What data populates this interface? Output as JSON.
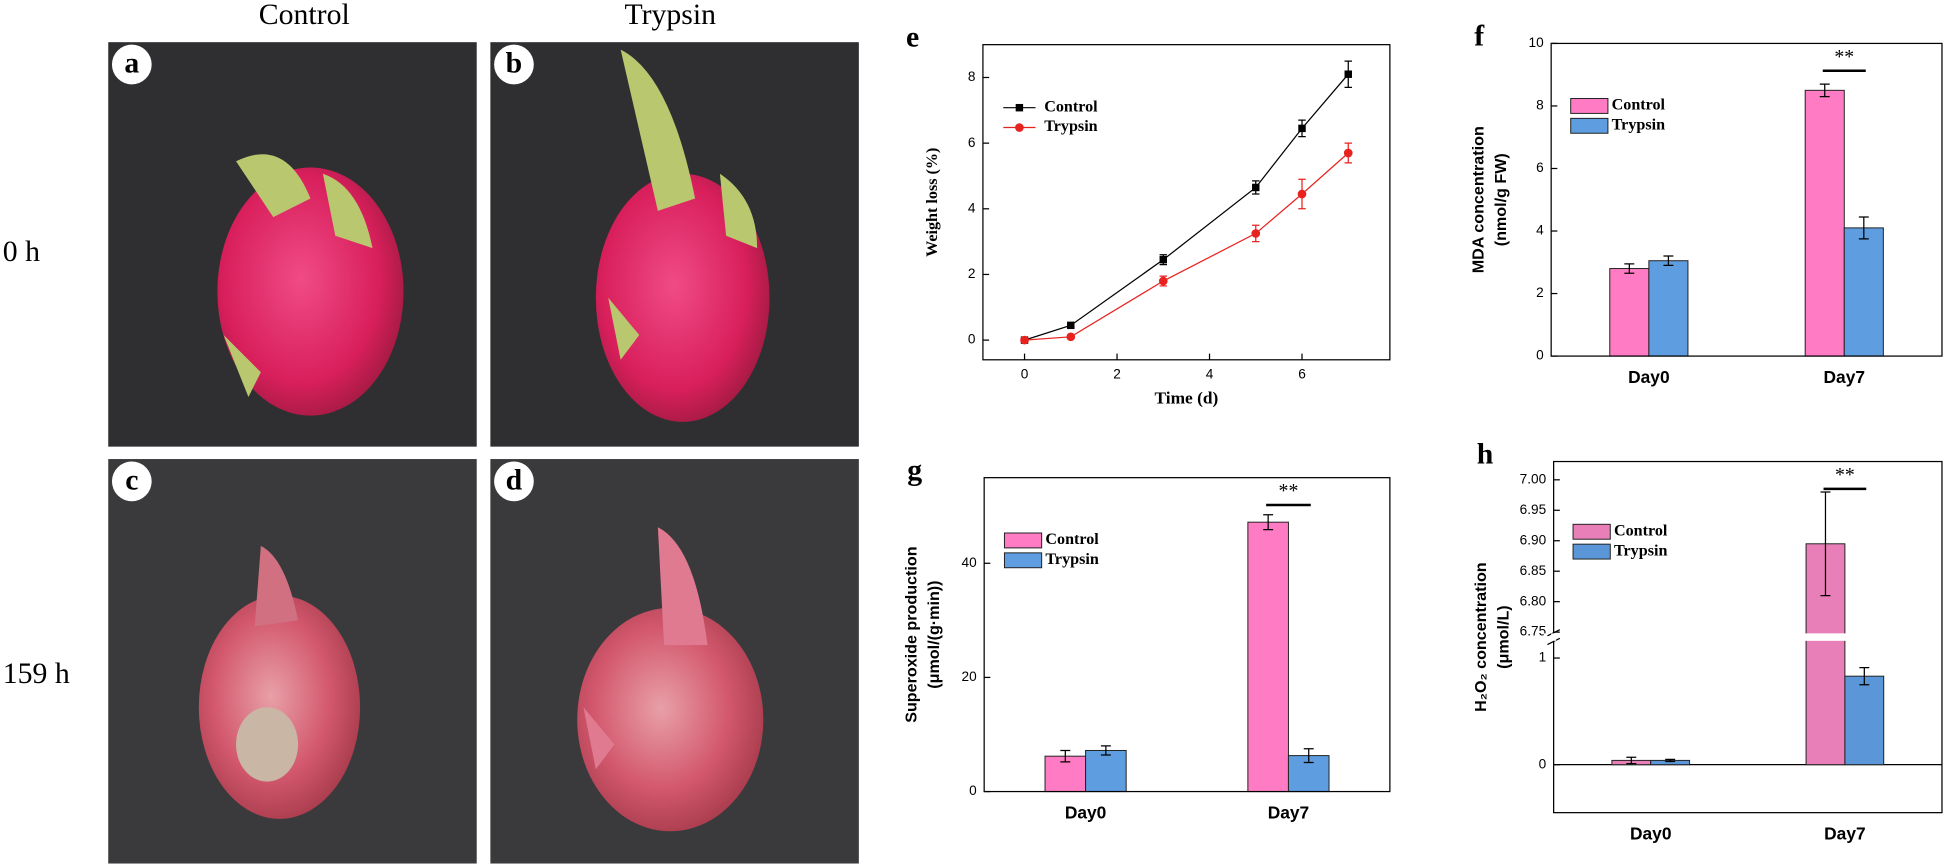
{
  "photos": {
    "columns": [
      "Control",
      "Trypsin"
    ],
    "rows": [
      "0 h",
      "159 h"
    ],
    "panels": [
      "a",
      "b",
      "c",
      "d"
    ]
  },
  "chart_data": [
    {
      "type": "line",
      "panel_label": "e",
      "xlabel": "Time (d)",
      "ylabel": [
        "Weight loss (%)"
      ],
      "x": [
        0,
        1,
        3,
        5,
        6,
        7
      ],
      "series": [
        {
          "name": "Control",
          "color": "#000000",
          "marker": "square",
          "values": [
            0,
            0.45,
            2.45,
            4.65,
            6.45,
            8.1
          ],
          "errors": [
            0,
            0.05,
            0.15,
            0.2,
            0.25,
            0.4
          ]
        },
        {
          "name": "Trypsin",
          "color": "#e8221f",
          "marker": "circle",
          "values": [
            0,
            0.1,
            1.8,
            3.25,
            4.45,
            5.7
          ],
          "errors": [
            0,
            0.05,
            0.15,
            0.25,
            0.45,
            0.3
          ]
        }
      ],
      "xlim": [
        -0.9,
        7.9
      ],
      "xticks": [
        0,
        2,
        4,
        6
      ],
      "ylim": [
        -0.6,
        9
      ],
      "yticks": [
        0,
        2,
        4,
        6,
        8
      ],
      "legend": "upper left"
    },
    {
      "type": "bar",
      "panel_label": "f",
      "ylabel": [
        "MDA concentration",
        "(nmol/g FW)"
      ],
      "annotation": "**",
      "categories": [
        "Day0",
        "Day7"
      ],
      "series": [
        {
          "name": "Control",
          "color": "#ff7cc4",
          "values": [
            2.8,
            8.5
          ],
          "errors": [
            0.15,
            0.2
          ]
        },
        {
          "name": "Trypsin",
          "color": "#5d9de0",
          "values": [
            3.05,
            4.1
          ],
          "errors": [
            0.15,
            0.35
          ]
        }
      ],
      "ylim": [
        0,
        10
      ],
      "yticks": [
        0,
        2,
        4,
        6,
        8,
        10
      ],
      "legend": "upper left"
    },
    {
      "type": "bar",
      "panel_label": "g",
      "ylabel": [
        "Superoxide production",
        "(μmol/(g·min))"
      ],
      "annotation": "**",
      "categories": [
        "Day0",
        "Day7"
      ],
      "series": [
        {
          "name": "Control",
          "color": "#ff7cc4",
          "values": [
            6.2,
            47.2
          ],
          "errors": [
            1,
            1.3
          ]
        },
        {
          "name": "Trypsin",
          "color": "#5d9de0",
          "values": [
            7.2,
            6.3
          ],
          "errors": [
            0.8,
            1.2
          ]
        }
      ],
      "ylim": [
        0,
        55
      ],
      "yticks": [
        0,
        20,
        40
      ],
      "legend": "upper left"
    },
    {
      "type": "bar",
      "panel_label": "h",
      "ylabel": [
        "H₂O₂ concentration",
        "(μmol/L)"
      ],
      "annotation": "**",
      "categories": [
        "Day0",
        "Day7"
      ],
      "series": [
        {
          "name": "Control",
          "color": "#e97fb8",
          "values": [
            0.04,
            6.895
          ],
          "errors": [
            0.03,
            0.085
          ]
        },
        {
          "name": "Trypsin",
          "color": "#5a96d8",
          "values": [
            0.04,
            0.83
          ],
          "errors": [
            0.01,
            0.08
          ]
        }
      ],
      "ylim": [
        -0.45,
        7.03
      ],
      "axis_break": [
        1.15,
        6.75
      ],
      "yticks": [
        0,
        1,
        6.75,
        {
          "value": 6.8,
          "label": "6.80"
        },
        6.85,
        {
          "value": 6.9,
          "label": "6.90"
        },
        6.95,
        {
          "value": 7,
          "label": "7.00"
        }
      ],
      "legend": "upper left"
    }
  ]
}
